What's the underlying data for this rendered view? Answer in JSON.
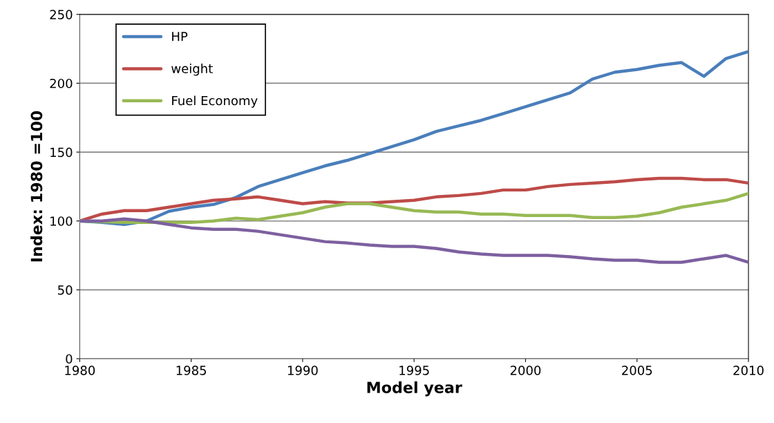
{
  "chart_data": {
    "type": "line",
    "xlabel": "Model year",
    "ylabel": "Index: 1980 =100",
    "x": [
      1980,
      1981,
      1982,
      1983,
      1984,
      1985,
      1986,
      1987,
      1988,
      1989,
      1990,
      1991,
      1992,
      1993,
      1994,
      1995,
      1996,
      1997,
      1998,
      1999,
      2000,
      2001,
      2002,
      2003,
      2004,
      2005,
      2006,
      2007,
      2008,
      2009,
      2010
    ],
    "series": [
      {
        "name": "HP",
        "color": "#4a7ebb",
        "values": [
          100,
          99,
          97.5,
          100,
          107,
          110,
          112,
          117,
          125,
          130,
          135,
          140,
          144,
          149,
          154,
          159,
          165,
          169,
          173,
          178,
          183,
          188,
          193,
          203,
          208,
          210,
          213,
          215,
          205,
          218,
          223
        ]
      },
      {
        "name": "weight",
        "color": "#be4b48",
        "values": [
          100,
          105,
          107.5,
          107.5,
          110,
          112.5,
          115,
          116,
          117.5,
          115,
          112.5,
          114,
          113,
          113,
          114,
          115,
          117.5,
          118.5,
          120,
          122.5,
          122.5,
          125,
          126.5,
          127.5,
          128.5,
          130,
          131,
          131,
          130,
          130,
          127.5
        ]
      },
      {
        "name": "Fuel Economy",
        "color": "#98b954",
        "values": [
          100,
          99.5,
          99,
          99,
          99,
          99,
          100,
          102,
          101,
          103.5,
          106,
          110,
          112.5,
          112.5,
          110,
          107.5,
          106.5,
          106.5,
          105,
          105,
          104,
          104,
          104,
          102.5,
          102.5,
          103.5,
          106,
          110,
          112.5,
          115,
          120
        ]
      },
      {
        "color": "#7d60a0",
        "values": [
          100,
          100,
          101.5,
          100,
          97.5,
          95,
          94,
          94,
          92.5,
          90,
          87.5,
          85,
          84,
          82.5,
          81.5,
          81.5,
          80,
          77.5,
          76,
          75,
          75,
          75,
          74,
          72.5,
          71.5,
          71.5,
          70,
          70,
          72.5,
          75,
          70
        ]
      }
    ],
    "xlim": [
      1980,
      2010
    ],
    "xticks": [
      1980,
      1985,
      1990,
      1995,
      2000,
      2005,
      2010
    ],
    "ylim": [
      0,
      250
    ],
    "yticks": [
      0,
      50,
      100,
      150,
      200,
      250
    ],
    "grid": "y",
    "legend": "top left",
    "marker": "none",
    "line_style": "solid"
  }
}
